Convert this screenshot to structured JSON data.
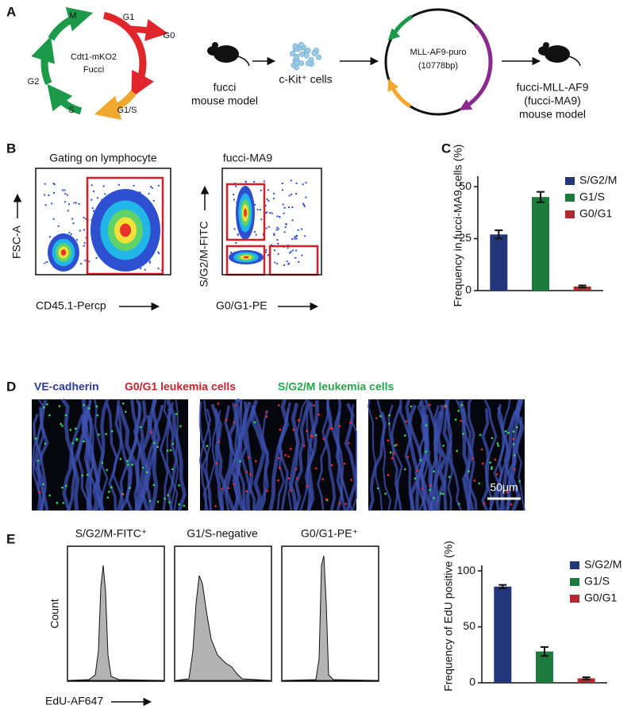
{
  "panel_labels": [
    "A",
    "B",
    "C",
    "D",
    "E"
  ],
  "panel_a": {
    "cycle": {
      "phases": [
        "M",
        "G1",
        "G0",
        "G2",
        "S",
        "G1/S"
      ],
      "center": [
        "Cdt1-mKO2",
        "Fucci"
      ]
    },
    "steps": [
      [
        "fucci",
        "mouse model"
      ],
      [
        "c-Kit⁺ cells"
      ],
      [
        "MLL-AF9-puro",
        "(10778bp)"
      ],
      [
        "fucci-MLL-AF9",
        "(fucci-MA9)",
        "mouse model"
      ]
    ]
  },
  "panel_b": {
    "plots": [
      {
        "title": "Gating on lymphocyte",
        "y_label": "FSC-A",
        "x_label": "CD45.1-Percp"
      },
      {
        "title": "fucci-MA9",
        "y_label": "S/G2/M-FITC",
        "x_label": "G0/G1-PE"
      }
    ]
  },
  "panel_d": {
    "stains": [
      "VE-cadherin",
      "G0/G1 leukemia cells",
      "S/G2/M leukemia cells"
    ],
    "scale_bar": "50μm"
  },
  "panel_e": {
    "histograms": [
      "S/G2/M-FITC⁺",
      "G1/S-negative",
      "G0/G1-PE⁺"
    ],
    "y_label": "Count",
    "x_label": "EdU-AF647"
  },
  "chart_data": [
    {
      "type": "bar",
      "y_label": "Frequency in fucci-MA9 cells (%)",
      "categories": [
        "S/G2/M",
        "G1/S",
        "G0/G1"
      ],
      "colors": [
        "#24367a",
        "#1b7a3c",
        "#b22a30"
      ],
      "values": [
        27,
        45,
        2
      ],
      "errors": [
        2,
        2.5,
        0.5
      ],
      "ylim": [
        0,
        55
      ],
      "yticks": [
        0,
        25,
        50
      ]
    },
    {
      "type": "bar",
      "y_label": "Frequency of EdU positive (%)",
      "categories": [
        "S/G2/M",
        "G1/S",
        "G0/G1"
      ],
      "colors": [
        "#24367a",
        "#1b7a3c",
        "#b22a30"
      ],
      "values": [
        86,
        28,
        4
      ],
      "errors": [
        1.5,
        4,
        1
      ],
      "ylim": [
        0,
        105
      ],
      "yticks": [
        0,
        50,
        100
      ]
    }
  ]
}
